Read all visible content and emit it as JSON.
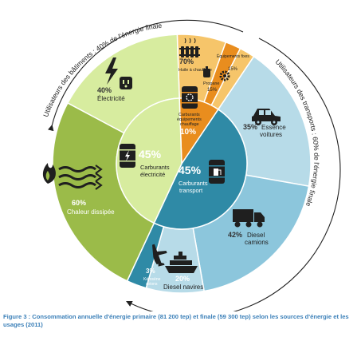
{
  "arcs": {
    "buildings_label": "Utilisateurs des bâtiments : 40% de l'énergie finale",
    "transport_label": "Utilisateurs des transports : 60% de l'énergie finale"
  },
  "outer": {
    "electricite": {
      "pct": "40%",
      "label": "Électricité"
    },
    "chaleur": {
      "pct": "60%",
      "label": "Chaleur dissipée"
    },
    "huile": {
      "pct": "70%",
      "label": "Huile à chauffage"
    },
    "propane": {
      "pct": "15%",
      "label": "Propane"
    },
    "equipements": {
      "pct": "15%",
      "label": "Équipements fixes"
    },
    "essence": {
      "pct": "35%",
      "label1": "Essence",
      "label2": "voitures"
    },
    "diesel_camions": {
      "pct": "42%",
      "label1": "Diesel",
      "label2": "camions"
    },
    "diesel_navires": {
      "pct": "20%",
      "label": "Diesel navires"
    },
    "kerosene": {
      "pct": "3%",
      "label1": "Kérosène",
      "label2": "avions"
    }
  },
  "inner": {
    "carburants_electricite": {
      "pct": "45%",
      "label1": "Carburants",
      "label2": "électricité"
    },
    "carburants_transport": {
      "pct": "45%",
      "label1": "Carburants",
      "label2": "transport"
    },
    "carburants_chauffage": {
      "pct": "10%",
      "label1": "Carburants",
      "label2": "équipements",
      "label3": "chauffage"
    }
  },
  "colors": {
    "light_green": "#d7ec9f",
    "olive_green": "#9bbb49",
    "orange_dark": "#e98d1e",
    "orange_light": "#f6c56a",
    "blue_light": "#b7dbe8",
    "blue_mid": "#8cc6dc",
    "teal_dark": "#2f8aa6",
    "icon_dark": "#1f1f1f"
  },
  "caption": "Figure 3 : Consommation annuelle d'énergie primaire (81 200 tep) et finale (59 300 tep) selon les sources d'énergie et les usages (2011)"
}
